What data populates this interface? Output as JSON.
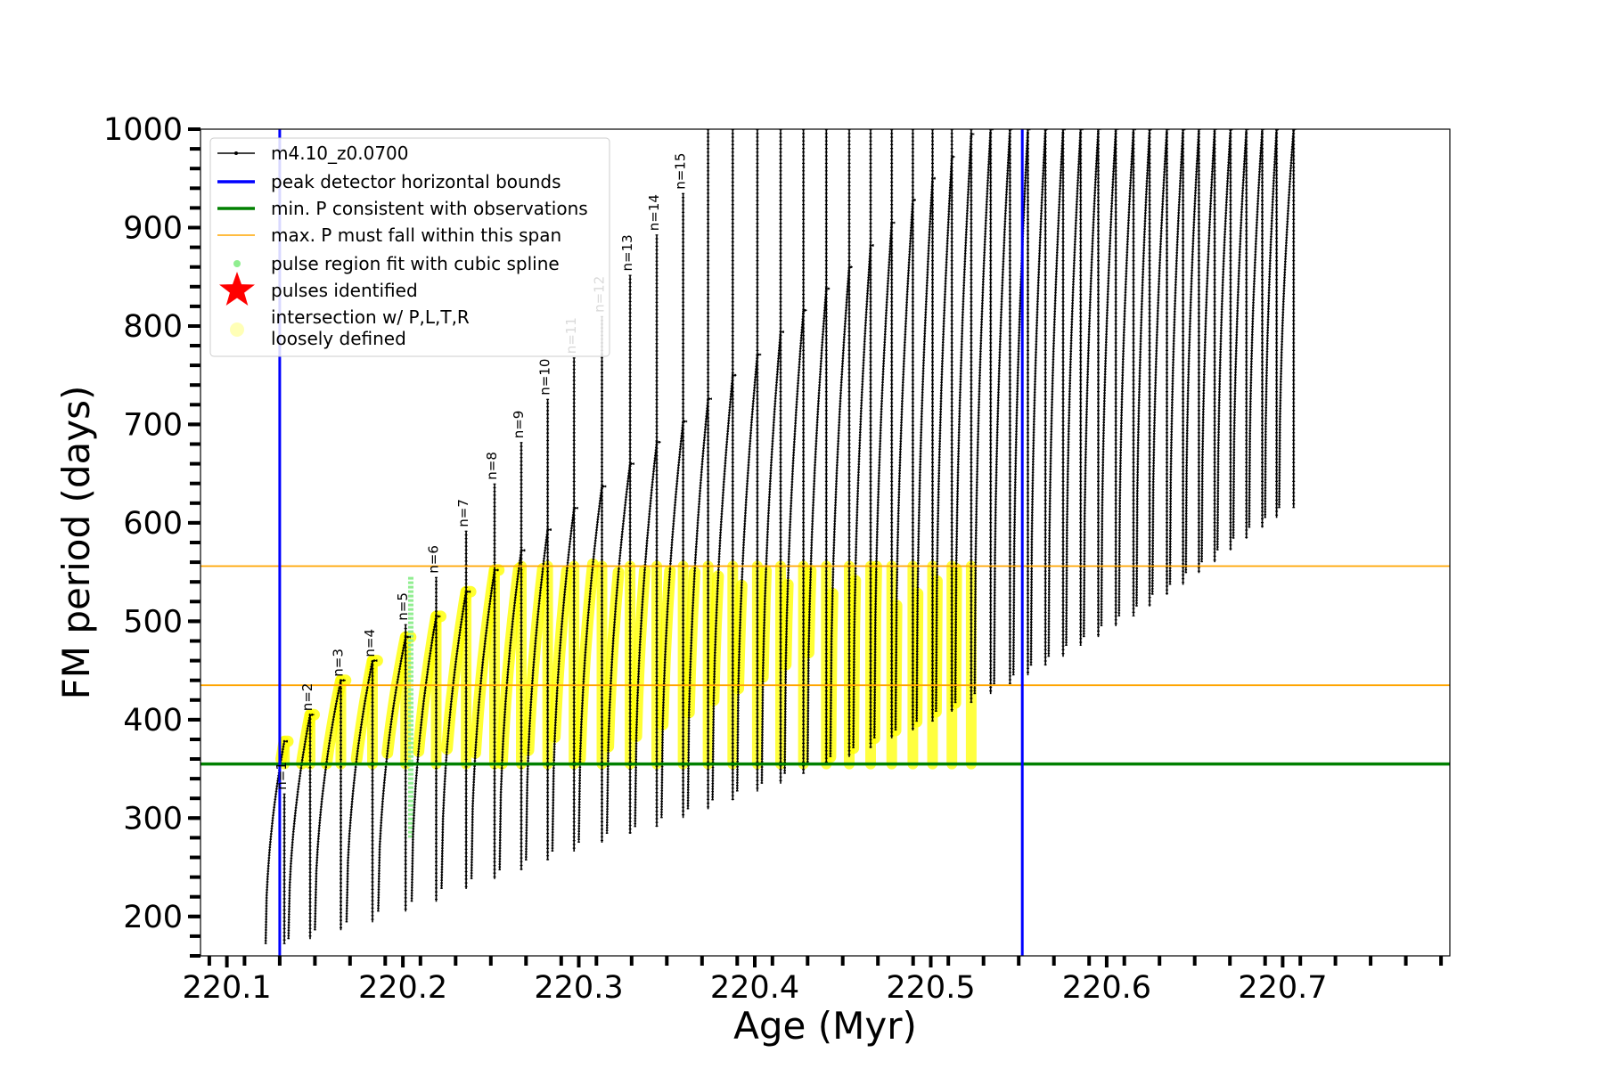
{
  "chart_data": {
    "type": "line",
    "xlabel": "Age (Myr)",
    "ylabel": "FM period (days)",
    "xlim": [
      220.085,
      220.795
    ],
    "ylim": [
      160,
      1000
    ],
    "x_ticks": [
      "220.1",
      "220.2",
      "220.3",
      "220.4",
      "220.5",
      "220.6",
      "220.7"
    ],
    "y_ticks": [
      "200",
      "300",
      "400",
      "500",
      "600",
      "700",
      "800",
      "900",
      "1000"
    ],
    "legend": {
      "placement": "upper-left",
      "entries": [
        {
          "key": "model",
          "label": "m4.10_z0.0700",
          "color": "#000000",
          "marker": "line-dot"
        },
        {
          "key": "peak_bounds",
          "label": "peak detector horizontal bounds",
          "color": "#0000ff",
          "marker": "line"
        },
        {
          "key": "min_p",
          "label": "min. P consistent with observations",
          "color": "#008000",
          "marker": "line"
        },
        {
          "key": "max_p",
          "label": "max. P must fall within this span",
          "color": "#ffa500",
          "marker": "thin-line"
        },
        {
          "key": "spline",
          "label": "pulse region fit with cubic spline",
          "color": "#90ee90",
          "marker": "dot"
        },
        {
          "key": "pulses",
          "label": "pulses identified",
          "color": "#ff0000",
          "marker": "star"
        },
        {
          "key": "intersection",
          "label": "intersection w/ P,L,T,R",
          "label2": "loosely defined",
          "color": "#ffff99",
          "marker": "circle"
        }
      ]
    },
    "vertical_lines": {
      "color": "#0000ff",
      "x": [
        220.13,
        220.552
      ]
    },
    "horizontal_lines": [
      {
        "name": "min. P",
        "y": 355,
        "color": "#008000"
      },
      {
        "name": "max. P lower",
        "y": 435,
        "color": "#ffa500"
      },
      {
        "name": "max. P upper",
        "y": 556,
        "color": "#ffa500"
      }
    ],
    "pulse_labels": [
      "n=1",
      "n=2",
      "n=3",
      "n=4",
      "n=5",
      "n=6",
      "n=7",
      "n=8",
      "n=9",
      "n=10",
      "n=11",
      "n=12",
      "n=13",
      "n=14",
      "n=15"
    ],
    "pulses": [
      {
        "age": 220.122,
        "min": 172,
        "peak": 378,
        "spike": 325
      },
      {
        "age": 220.135,
        "min": 177,
        "peak": 405
      },
      {
        "age": 220.15,
        "min": 186,
        "peak": 440
      },
      {
        "age": 220.168,
        "min": 194,
        "peak": 460
      },
      {
        "age": 220.186,
        "min": 205,
        "peak": 484,
        "spike": 497
      },
      {
        "age": 220.205,
        "min": 215,
        "peak": 505,
        "spike": 545
      },
      {
        "age": 220.222,
        "min": 228,
        "peak": 530,
        "spike": 592
      },
      {
        "age": 220.239,
        "min": 238,
        "peak": 552,
        "spike": 640
      },
      {
        "age": 220.255,
        "min": 247,
        "peak": 572,
        "spike": 682
      },
      {
        "age": 220.27,
        "min": 257,
        "peak": 593,
        "spike": 726
      },
      {
        "age": 220.285,
        "min": 266,
        "peak": 615,
        "spike": 768
      },
      {
        "age": 220.3,
        "min": 275,
        "peak": 637,
        "spike": 810
      },
      {
        "age": 220.316,
        "min": 284,
        "peak": 660,
        "spike": 852
      },
      {
        "age": 220.332,
        "min": 291,
        "peak": 682,
        "spike": 893
      },
      {
        "age": 220.347,
        "min": 300,
        "peak": 703,
        "spike": 935
      },
      {
        "age": 220.362,
        "min": 309,
        "peak": 726,
        "spike": 1000
      },
      {
        "age": 220.376,
        "min": 318,
        "peak": 750,
        "spike": 1000
      },
      {
        "age": 220.39,
        "min": 327,
        "peak": 771,
        "spike": 1000
      },
      {
        "age": 220.404,
        "min": 335,
        "peak": 794,
        "spike": 1000
      },
      {
        "age": 220.417,
        "min": 345,
        "peak": 816,
        "spike": 1000
      },
      {
        "age": 220.43,
        "min": 354,
        "peak": 838,
        "spike": 1000
      },
      {
        "age": 220.443,
        "min": 362,
        "peak": 860,
        "spike": 1000
      },
      {
        "age": 220.456,
        "min": 371,
        "peak": 882,
        "spike": 1000
      },
      {
        "age": 220.468,
        "min": 381,
        "peak": 905,
        "spike": 1000
      },
      {
        "age": 220.48,
        "min": 389,
        "peak": 928,
        "spike": 1000
      },
      {
        "age": 220.492,
        "min": 398,
        "peak": 950,
        "spike": 1000
      },
      {
        "age": 220.503,
        "min": 408,
        "peak": 972,
        "spike": 1000
      },
      {
        "age": 220.514,
        "min": 417,
        "peak": 995,
        "spike": 1000
      },
      {
        "age": 220.525,
        "min": 426,
        "peak": 1000,
        "spike": 1000
      },
      {
        "age": 220.536,
        "min": 436,
        "peak": 1000,
        "spike": 1000
      },
      {
        "age": 220.547,
        "min": 445,
        "peak": 1000,
        "spike": 1000
      },
      {
        "age": 220.557,
        "min": 455,
        "peak": 1000,
        "spike": 1000
      },
      {
        "age": 220.567,
        "min": 464,
        "peak": 1000,
        "spike": 1000
      },
      {
        "age": 220.577,
        "min": 475,
        "peak": 1000,
        "spike": 1000
      },
      {
        "age": 220.587,
        "min": 484,
        "peak": 1000,
        "spike": 1000
      },
      {
        "age": 220.597,
        "min": 495,
        "peak": 1000,
        "spike": 1000
      },
      {
        "age": 220.607,
        "min": 505,
        "peak": 1000,
        "spike": 1000
      },
      {
        "age": 220.617,
        "min": 515,
        "peak": 1000,
        "spike": 1000
      },
      {
        "age": 220.626,
        "min": 527,
        "peak": 1000,
        "spike": 1000
      },
      {
        "age": 220.636,
        "min": 537,
        "peak": 1000,
        "spike": 1000
      },
      {
        "age": 220.645,
        "min": 549,
        "peak": 1000,
        "spike": 1000
      },
      {
        "age": 220.654,
        "min": 560,
        "peak": 1000,
        "spike": 1000
      },
      {
        "age": 220.663,
        "min": 572,
        "peak": 1000,
        "spike": 1000
      },
      {
        "age": 220.672,
        "min": 584,
        "peak": 1000,
        "spike": 1000
      },
      {
        "age": 220.681,
        "min": 595,
        "peak": 1000,
        "spike": 1000
      },
      {
        "age": 220.69,
        "min": 605,
        "peak": 1000,
        "spike": 1000
      },
      {
        "age": 220.698,
        "min": 615,
        "peak": 1000,
        "spike": 1000
      }
    ]
  }
}
